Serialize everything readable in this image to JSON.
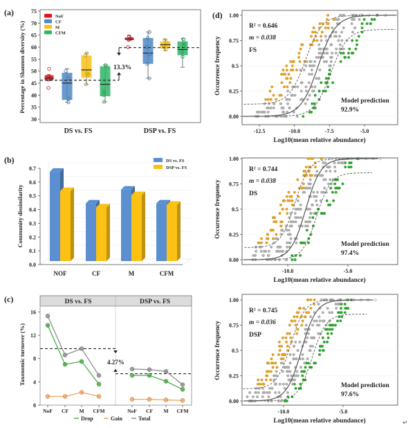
{
  "chart_data": [
    {
      "panel": "(a)",
      "type": "box",
      "ylabel": "Percentage in Shannon diversity (%)",
      "ylim": [
        30,
        75
      ],
      "yticks": [
        30,
        35,
        40,
        45,
        50,
        55,
        60,
        65,
        70,
        75
      ],
      "groups": [
        "DS vs. FS",
        "DSP vs. FS"
      ],
      "legend": [
        {
          "name": "NoF",
          "color": "#e3161c"
        },
        {
          "name": "CF",
          "color": "#4f88c6"
        },
        {
          "name": "M",
          "color": "#f7c117"
        },
        {
          "name": "CFM",
          "color": "#2fb566"
        }
      ],
      "boxes": [
        {
          "group": "DS vs. FS",
          "series": "NoF",
          "min": 46,
          "q1": 46.3,
          "median": 47,
          "q3": 48.3,
          "max": 48.5,
          "points": [
            51,
            43,
            47,
            46.5,
            48
          ]
        },
        {
          "group": "DS vs. FS",
          "series": "CF",
          "min": 37,
          "q1": 38,
          "median": 45,
          "q3": 49.3,
          "max": 51,
          "points": [
            37,
            38.5,
            47,
            50
          ]
        },
        {
          "group": "DS vs. FS",
          "series": "M",
          "min": 44.5,
          "q1": 47.2,
          "median": 50.5,
          "q3": 56.5,
          "max": 57.5,
          "points": [
            57.5,
            56.5,
            49,
            48.5,
            44.5
          ]
        },
        {
          "group": "DS vs. FS",
          "series": "CFM",
          "min": 37.2,
          "q1": 39.5,
          "median": 44.5,
          "q3": 52,
          "max": 52.5,
          "points": [
            52.5,
            52,
            41.5,
            40,
            37.2
          ]
        },
        {
          "group": "DSP vs. FS",
          "series": "NoF",
          "min": 62.8,
          "q1": 63,
          "median": 63.3,
          "q3": 64,
          "max": 64.7,
          "points": [
            60,
            64.5,
            63.5,
            63
          ]
        },
        {
          "group": "DSP vs. FS",
          "series": "CF",
          "min": 47,
          "q1": 53,
          "median": 57.5,
          "q3": 63.8,
          "max": 66.3,
          "points": [
            66.3,
            63.8,
            60,
            57,
            53,
            47
          ]
        },
        {
          "group": "DSP vs. FS",
          "series": "M",
          "min": 58.5,
          "q1": 59.5,
          "median": 61,
          "q3": 62.3,
          "max": 63.2,
          "points": [
            63,
            62,
            61,
            60,
            59
          ]
        },
        {
          "group": "DSP vs. FS",
          "series": "CFM",
          "min": 51.6,
          "q1": 56.6,
          "median": 59,
          "q3": 62.3,
          "max": 63.5,
          "points": [
            63.3,
            62,
            60.5,
            58,
            56
          ]
        }
      ],
      "reference_lines": [
        46.2,
        59.8
      ],
      "annotation": "13.3%"
    },
    {
      "panel": "(b)",
      "type": "bar",
      "ylabel": "Community dissimilarity",
      "ylim": [
        0,
        0.7
      ],
      "yticks": [
        "0.0",
        "0.1",
        "0.2",
        "0.3",
        "0.4",
        "0.5",
        "0.6",
        "0.7"
      ],
      "categories": [
        "NOF",
        "CF",
        "M",
        "CFM"
      ],
      "series": [
        {
          "name": "DS vs. FS",
          "color": "#5b8fd0",
          "values": [
            0.65,
            0.42,
            0.52,
            0.42
          ]
        },
        {
          "name": "DSP vs. FS",
          "color": "#fdc114",
          "values": [
            0.51,
            0.39,
            0.48,
            0.41
          ]
        }
      ],
      "legend_position": "top-right"
    },
    {
      "panel": "(c)",
      "type": "line",
      "ylabel": "Taxonomic turnover (%)",
      "ylim": [
        0,
        17
      ],
      "yticks": [
        0,
        4,
        8,
        12,
        16
      ],
      "facets": [
        "DS vs. FS",
        "DSP vs. FS"
      ],
      "categories": [
        "NoF",
        "CF",
        "M",
        "CFM"
      ],
      "series": [
        {
          "name": "Drop",
          "color": "#4cad47",
          "values": [
            [
              13.7,
              7.0,
              7.5,
              3.6
            ],
            [
              5.1,
              5.1,
              4.1,
              2.7
            ]
          ]
        },
        {
          "name": "Gain",
          "color": "#f2a35c",
          "values": [
            [
              1.5,
              1.5,
              2.2,
              1.5
            ],
            [
              1.0,
              1.0,
              0.9,
              0.8
            ]
          ]
        },
        {
          "name": "Total",
          "color": "#8f8f8f",
          "values": [
            [
              15.3,
              8.6,
              9.7,
              5.1
            ],
            [
              6.2,
              6.1,
              5.8,
              3.5
            ]
          ]
        }
      ],
      "reference_lines": [
        9.7,
        5.4
      ],
      "annotation": "4.27%",
      "legend_position": "bottom"
    },
    {
      "panel": "(d)",
      "type": "scatter",
      "subplots": [
        {
          "label": "FS",
          "r2": "R² = 0.646",
          "m": "m = 0.038",
          "prediction_label": "Model prediction",
          "prediction": "92.9%",
          "xticks": [
            "-12.5",
            "-10.0",
            "-7.5",
            "-5.0"
          ],
          "xlim": [
            -13.5,
            -2.5
          ]
        },
        {
          "label": "DS",
          "r2": "R² = 0.744",
          "m": "m = 0.038",
          "prediction_label": "Model prediction",
          "prediction": "97.4%",
          "xticks": [
            "-10.0",
            "-5.0"
          ],
          "xlim": [
            -13.5,
            -1.5
          ]
        },
        {
          "label": "DSP",
          "r2": "R² = 0.745",
          "m": "m = 0.036",
          "prediction_label": "Model prediction",
          "prediction": "97.6%",
          "xticks": [
            "-10.0",
            "-5.0"
          ],
          "xlim": [
            -13.5,
            -1.5
          ]
        }
      ],
      "xlabel": "Log10(mean relative abundance)",
      "ylabel": "Occurrence frequency",
      "ylim": [
        0,
        1
      ],
      "yticks": [
        "0.00",
        "0.25",
        "0.5",
        "0.75",
        "1.00"
      ],
      "colors": {
        "above": "#e8a323",
        "within": "#b0b0b0",
        "below": "#2ca82c"
      }
    }
  ],
  "labels": {
    "a_panel": "(a)",
    "b_panel": "(b)",
    "c_panel": "(c)",
    "d_panel": "(d)",
    "c_legend_title": ""
  }
}
